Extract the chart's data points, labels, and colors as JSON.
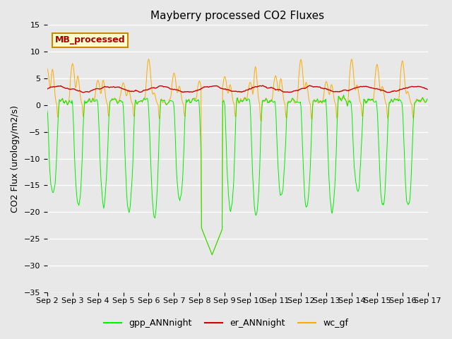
{
  "title": "Mayberry processed CO2 Fluxes",
  "ylabel": "CO2 Flux (urology/m2/s)",
  "ylim": [
    -35,
    15
  ],
  "yticks": [
    -35,
    -30,
    -25,
    -20,
    -15,
    -10,
    -5,
    0,
    5,
    10,
    15
  ],
  "bg_color": "#e8e8e8",
  "grid_color": "#ffffff",
  "legend_label": "MB_processed",
  "legend_box_facecolor": "#ffffcc",
  "legend_box_edgecolor": "#cc8800",
  "legend_text_color": "#aa0000",
  "series_colors": {
    "gpp": "#00ee00",
    "er": "#cc0000",
    "wc": "#ffaa00"
  },
  "legend_items": [
    "gpp_ANNnight",
    "er_ANNnight",
    "wc_gf"
  ],
  "legend_colors": [
    "#00ee00",
    "#cc0000",
    "#ffaa00"
  ],
  "title_fontsize": 11,
  "axis_fontsize": 9,
  "tick_fontsize": 8,
  "legend_fontsize": 9
}
